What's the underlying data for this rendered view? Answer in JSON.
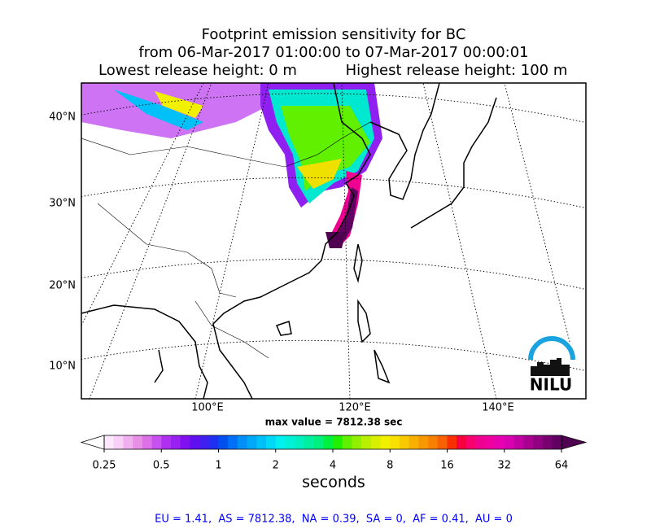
{
  "header": {
    "title_lines": [
      "Footprint emission sensitivity for BC",
      "from 06-Mar-2017 01:00:00 to 07-Mar-2017 00:00:01"
    ],
    "lowest": "Lowest release height: 0 m",
    "highest": "Highest release height: 100 m"
  },
  "map": {
    "lat_labels": [
      "40°N",
      "30°N",
      "20°N",
      "10°N"
    ],
    "lon_labels": [
      "100°E",
      "120°E",
      "140°E"
    ],
    "max_value": "max value = 7812.38 sec",
    "logo": "NILU"
  },
  "colorbar": {
    "ticks": [
      0.25,
      0.5,
      1,
      2,
      4,
      8,
      16,
      32,
      64
    ],
    "label": "seconds",
    "under_color": "#ffffff",
    "over_color": "#500050",
    "colors": [
      "#fce8fc",
      "#f8d0f8",
      "#f0b0f0",
      "#e890e8",
      "#dc70e8",
      "#c850f0",
      "#b030f0",
      "#9820f0",
      "#8010f0",
      "#6010f0",
      "#4020f0",
      "#2030f0",
      "#0050f0",
      "#0070f8",
      "#0090f8",
      "#00a8f8",
      "#00c0f8",
      "#00d8f8",
      "#00f0f0",
      "#00f0d8",
      "#00f0c0",
      "#00f0a0",
      "#00f080",
      "#00f040",
      "#20f000",
      "#60f000",
      "#90f000",
      "#b8f000",
      "#d8f000",
      "#f0f000",
      "#f8e000",
      "#f8c800",
      "#f8b000",
      "#f89800",
      "#f88000",
      "#f86000",
      "#f83000",
      "#f80040",
      "#f80070",
      "#f00090",
      "#f000a0",
      "#e800b0",
      "#d800b0",
      "#c000a0",
      "#a80090",
      "#900080",
      "#780070",
      "#600060"
    ]
  },
  "footer": {
    "stats": "EU = 1.41,  AS = 7812.38,  NA = 0.39,  SA = 0,  AF = 0.41,  AU = 0"
  }
}
